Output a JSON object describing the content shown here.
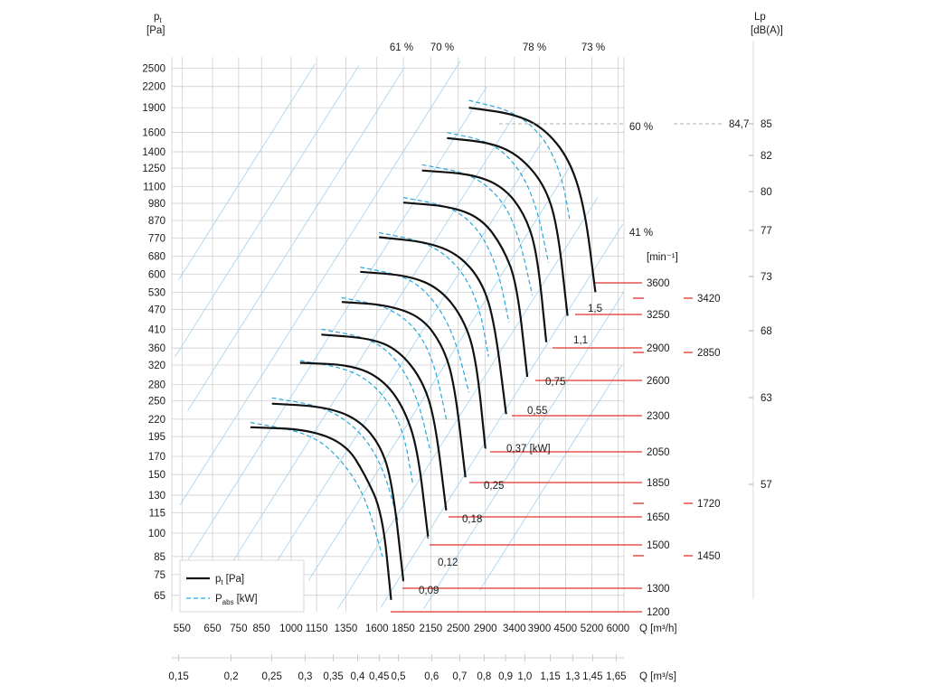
{
  "chart_data": {
    "type": "line",
    "title": "",
    "y_axis": {
      "label_main": "p",
      "label_sub": "t",
      "unit": "[Pa]",
      "ticks": [
        2500,
        2200,
        1900,
        1600,
        1400,
        1250,
        1100,
        980,
        870,
        770,
        680,
        600,
        530,
        470,
        410,
        360,
        320,
        280,
        250,
        220,
        195,
        170,
        150,
        130,
        115,
        100,
        85,
        75,
        65
      ],
      "scale": "log",
      "ylim": [
        58,
        2700
      ]
    },
    "x_axis_m3h": {
      "label": "Q [m³/h]",
      "ticks": [
        550,
        650,
        750,
        850,
        1000,
        1150,
        1350,
        1600,
        1850,
        2150,
        2500,
        2900,
        3400,
        3900,
        4500,
        5200,
        6000
      ],
      "scale": "log"
    },
    "x_axis_m3s": {
      "label": "Q [m³/s]",
      "ticks": [
        "0,15",
        "0,2",
        "0,25",
        "0,3",
        "0,35",
        "0,4",
        "0,45",
        "0,5",
        "0,6",
        "0,7",
        "0,8",
        "0,9",
        "1,0",
        "1,15",
        "1,3",
        "1,45",
        "1,65"
      ]
    },
    "lp_axis": {
      "label": "Lp",
      "unit": "[dB(A)]",
      "ticks": [
        "85",
        "82",
        "80",
        "77",
        "73",
        "68",
        "63",
        "57"
      ],
      "marker_value": "84,7"
    },
    "efficiency_labels": [
      "61 %",
      "70 %",
      "78 %",
      "73 %",
      "60 %",
      "41 %"
    ],
    "speed_unit": "[min⁻¹]",
    "speeds": [
      "3600",
      "3250",
      "2900",
      "2600",
      "2300",
      "2050",
      "1850",
      "1650",
      "1500",
      "1300",
      "1200"
    ],
    "speeds_alt": [
      "3420",
      "2850",
      "1720",
      "1450"
    ],
    "motor_powers": [
      "1,5",
      "1,1",
      "0,75",
      "0,55",
      "0,37 [kW]",
      "0,25",
      "0,18",
      "0,12",
      "0,09"
    ],
    "series": [
      {
        "name": "p_t [Pa]",
        "legend_main": "p",
        "legend_sub": "t",
        "legend_unit": "[Pa]",
        "style": "solid",
        "color": "#111111"
      },
      {
        "name": "P_abs [kW]",
        "legend_main": "P",
        "legend_sub": "abs",
        "legend_unit": "[kW]",
        "style": "dashed",
        "color": "#2aa7dc"
      }
    ],
    "pt_curves": [
      {
        "rpm": 3600,
        "points": [
          [
            2650,
            1900
          ],
          [
            3400,
            1820
          ],
          [
            4000,
            1650
          ],
          [
            4600,
            1330
          ],
          [
            5000,
            950
          ],
          [
            5300,
            530
          ]
        ]
      },
      {
        "rpm": 3250,
        "points": [
          [
            2350,
            1540
          ],
          [
            3000,
            1490
          ],
          [
            3500,
            1360
          ],
          [
            4000,
            1120
          ],
          [
            4300,
            850
          ],
          [
            4550,
            450
          ]
        ]
      },
      {
        "rpm": 2900,
        "points": [
          [
            2050,
            1230
          ],
          [
            2700,
            1200
          ],
          [
            3200,
            1100
          ],
          [
            3600,
            910
          ],
          [
            3850,
            700
          ],
          [
            4050,
            375
          ]
        ]
      },
      {
        "rpm": 2600,
        "points": [
          [
            1850,
            985
          ],
          [
            2400,
            960
          ],
          [
            2850,
            880
          ],
          [
            3200,
            720
          ],
          [
            3450,
            560
          ],
          [
            3650,
            295
          ]
        ]
      },
      {
        "rpm": 2300,
        "points": [
          [
            1620,
            775
          ],
          [
            2100,
            750
          ],
          [
            2500,
            690
          ],
          [
            2850,
            570
          ],
          [
            3050,
            430
          ],
          [
            3250,
            228
          ]
        ]
      },
      {
        "rpm": 2050,
        "points": [
          [
            1460,
            610
          ],
          [
            1900,
            595
          ],
          [
            2250,
            545
          ],
          [
            2550,
            450
          ],
          [
            2750,
            345
          ],
          [
            2900,
            180
          ]
        ]
      },
      {
        "rpm": 1850,
        "points": [
          [
            1320,
            495
          ],
          [
            1700,
            485
          ],
          [
            2050,
            445
          ],
          [
            2300,
            365
          ],
          [
            2450,
            280
          ],
          [
            2600,
            147
          ]
        ]
      },
      {
        "rpm": 1650,
        "points": [
          [
            1180,
            395
          ],
          [
            1550,
            385
          ],
          [
            1800,
            355
          ],
          [
            2050,
            290
          ],
          [
            2200,
            220
          ],
          [
            2340,
            117
          ]
        ]
      },
      {
        "rpm": 1500,
        "points": [
          [
            1050,
            325
          ],
          [
            1400,
            320
          ],
          [
            1650,
            290
          ],
          [
            1850,
            240
          ],
          [
            2000,
            180
          ],
          [
            2120,
            97
          ]
        ]
      },
      {
        "rpm": 1300,
        "points": [
          [
            900,
            245
          ],
          [
            1200,
            240
          ],
          [
            1450,
            220
          ],
          [
            1650,
            180
          ],
          [
            1750,
            135
          ],
          [
            1850,
            72
          ]
        ]
      },
      {
        "rpm": 1200,
        "points": [
          [
            800,
            208
          ],
          [
            1100,
            205
          ],
          [
            1350,
            185
          ],
          [
            1500,
            150
          ],
          [
            1650,
            115
          ],
          [
            1730,
            63
          ]
        ]
      }
    ],
    "power_curves": [
      {
        "kW": "1,5",
        "points": [
          [
            2650,
            2000
          ],
          [
            3400,
            1850
          ],
          [
            4000,
            1550
          ],
          [
            4400,
            1200
          ],
          [
            4600,
            880
          ]
        ]
      },
      {
        "kW": "1,1",
        "points": [
          [
            2350,
            1600
          ],
          [
            3000,
            1500
          ],
          [
            3500,
            1250
          ],
          [
            3850,
            950
          ],
          [
            4100,
            650
          ]
        ]
      },
      {
        "kW": "0,75",
        "points": [
          [
            2050,
            1280
          ],
          [
            2700,
            1200
          ],
          [
            3200,
            1000
          ],
          [
            3500,
            770
          ],
          [
            3750,
            520
          ]
        ]
      },
      {
        "kW": "0,55",
        "points": [
          [
            1850,
            1020
          ],
          [
            2400,
            960
          ],
          [
            2800,
            820
          ],
          [
            3100,
            630
          ],
          [
            3300,
            430
          ]
        ]
      },
      {
        "kW": "0,37 [kW]",
        "points": [
          [
            1620,
            800
          ],
          [
            2100,
            750
          ],
          [
            2500,
            640
          ],
          [
            2800,
            490
          ],
          [
            2950,
            340
          ]
        ]
      },
      {
        "kW": "0,25",
        "points": [
          [
            1460,
            630
          ],
          [
            1900,
            590
          ],
          [
            2200,
            500
          ],
          [
            2450,
            390
          ],
          [
            2650,
            265
          ]
        ]
      },
      {
        "kW": "0,18",
        "points": [
          [
            1320,
            510
          ],
          [
            1700,
            480
          ],
          [
            2000,
            410
          ],
          [
            2200,
            320
          ],
          [
            2350,
            215
          ]
        ]
      },
      {
        "kW": "0,12",
        "points": [
          [
            1180,
            410
          ],
          [
            1550,
            385
          ],
          [
            1800,
            330
          ],
          [
            2000,
            255
          ],
          [
            2150,
            175
          ]
        ]
      },
      {
        "kW": "0,09",
        "points": [
          [
            1050,
            330
          ],
          [
            1400,
            310
          ],
          [
            1650,
            265
          ],
          [
            1850,
            205
          ],
          [
            1950,
            140
          ]
        ]
      },
      {
        "kW": "",
        "points": [
          [
            900,
            255
          ],
          [
            1200,
            240
          ],
          [
            1450,
            205
          ],
          [
            1650,
            160
          ],
          [
            1800,
            108
          ]
        ]
      },
      {
        "kW": "",
        "points": [
          [
            800,
            215
          ],
          [
            1100,
            200
          ],
          [
            1300,
            170
          ],
          [
            1500,
            130
          ],
          [
            1650,
            85
          ]
        ]
      }
    ]
  }
}
